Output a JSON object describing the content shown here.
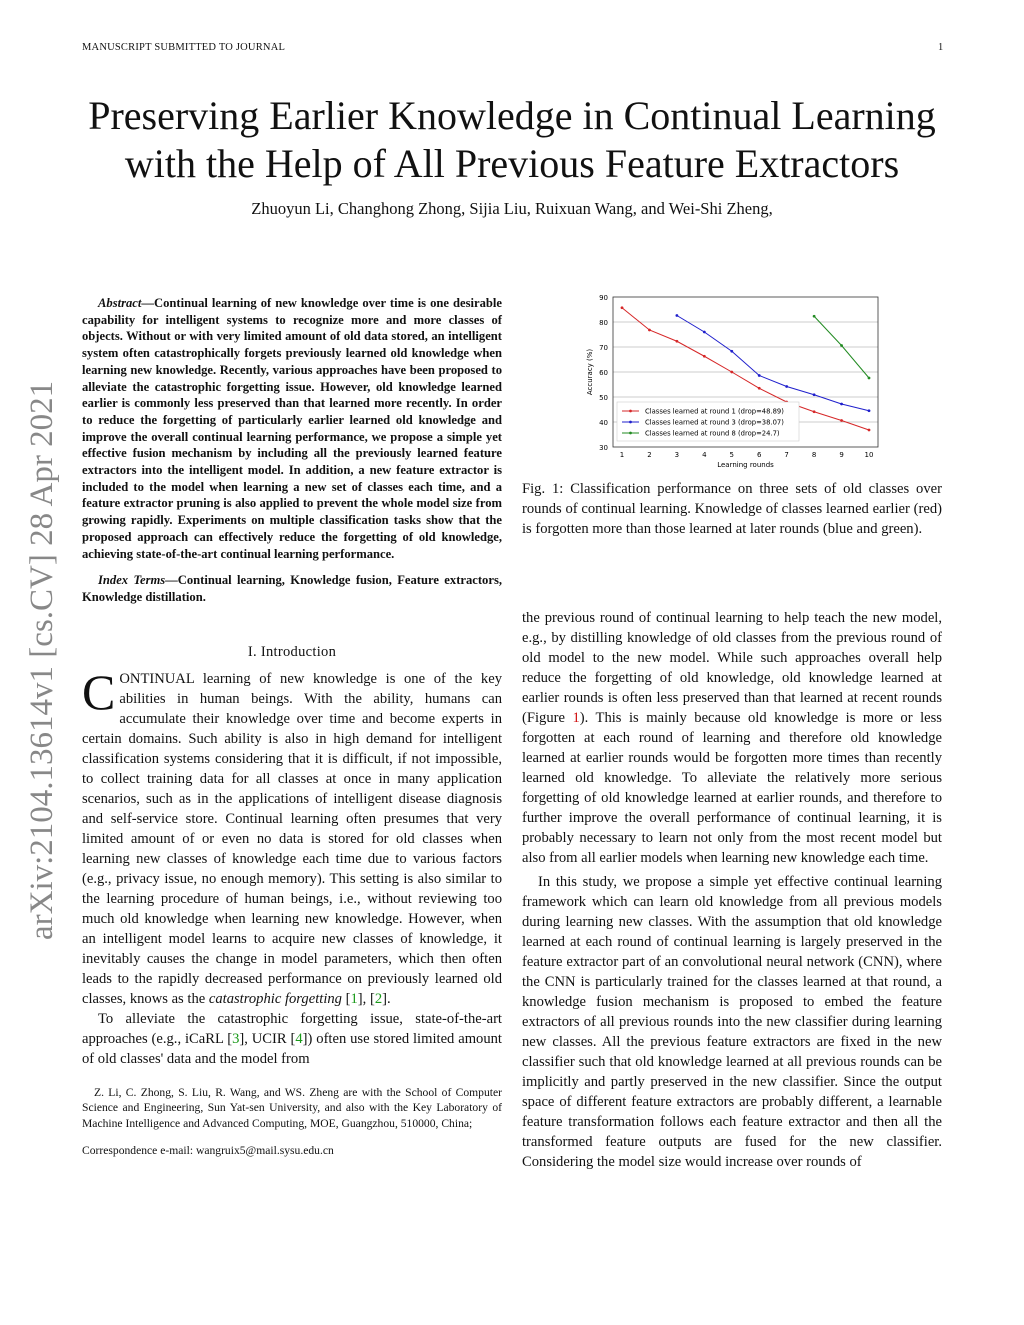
{
  "header": {
    "left": "MANUSCRIPT SUBMITTED TO JOURNAL",
    "page": "1"
  },
  "title_line1": "Preserving Earlier Knowledge in Continual Learning",
  "title_line2": "with the Help of All Previous Feature Extractors",
  "authors": "Zhuoyun Li, Changhong Zhong, Sijia Liu, Ruixuan Wang, and Wei-Shi Zheng,",
  "arxiv": "arXiv:2104.13614v1  [cs.CV]  28 Apr 2021",
  "abstract_label": "Abstract",
  "abstract": "—Continual learning of new knowledge over time is one desirable capability for intelligent systems to recognize more and more classes of objects. Without or with very limited amount of old data stored, an intelligent system often catastrophically forgets previously learned old knowledge when learning new knowledge. Recently, various approaches have been proposed to alleviate the catastrophic forgetting issue. However, old knowledge learned earlier is commonly less preserved than that learned more recently. In order to reduce the forgetting of particularly earlier learned old knowledge and improve the overall continual learning performance, we propose a simple yet effective fusion mechanism by including all the previously learned feature extractors into the intelligent model. In addition, a new feature extractor is included to the model when learning a new set of classes each time, and a feature extractor pruning is also applied to prevent the whole model size from growing rapidly. Experiments on multiple classification tasks show that the proposed approach can effectively reduce the forgetting of old knowledge, achieving state-of-the-art continual learning performance.",
  "index_label": "Index Terms",
  "index_terms": "—Continual learning, Knowledge fusion, Feature extractors, Knowledge distillation.",
  "section1": "I. Introduction",
  "intro_p1_drop": "C",
  "intro_p1": "ONTINUAL learning of new knowledge is one of the key abilities in human beings. With the ability, humans can accumulate their knowledge over time and become experts in certain domains. Such ability is also in high demand for intelligent classification systems considering that it is difficult, if not impossible, to collect training data for all classes at once in many application scenarios, such as in the applications of intelligent disease diagnosis and self-service store. Continual learning often presumes that very limited amount of or even no data is stored for old classes when learning new classes of knowledge each time due to various factors (e.g., privacy issue, no enough memory). This setting is also similar to the learning procedure of human beings, i.e., without reviewing too much old knowledge when learning new knowledge. However, when an intelligent model learns to acquire new classes of knowledge, it inevitably causes the change in model parameters, which then often leads to the rapidly decreased performance on previously learned old classes, knows as the",
  "intro_p1_em": "catastrophic forgetting",
  "cite1": "1",
  "cite2": "2",
  "cite3": "3",
  "cite4": "4",
  "fig_ref": "1",
  "intro_p2a": "To alleviate the catastrophic forgetting issue, state-of-the-art approaches (e.g., iCaRL [",
  "intro_p2b": "], UCIR [",
  "intro_p2c": "]) often use stored limited amount of old classes' data and the model from",
  "footnote1": "Z. Li, C. Zhong, S. Liu, R. Wang, and WS. Zheng are with the School of Computer Science and Engineering, Sun Yat-sen University, and also with the Key Laboratory of Machine Intelligence and Advanced Computing, MOE, Guangzhou, 510000, China;",
  "footnote2": "Correspondence e-mail: wangruix5@mail.sysu.edu.cn",
  "caption": "Fig. 1: Classification performance on three sets of old classes over rounds of continual learning. Knowledge of classes learned earlier (red) is forgotten more than those learned at later rounds (blue and green).",
  "right_p1a": "the previous round of continual learning to help teach the new model, e.g., by distilling knowledge of old classes from the previous round of old model to the new model. While such approaches overall help reduce the forgetting of old knowledge, old knowledge learned at earlier rounds is often less preserved than that learned at recent rounds (Figure ",
  "right_p1b": "). This is mainly because old knowledge is more or less forgotten at each round of learning and therefore old knowledge learned at earlier rounds would be forgotten more times than recently learned old knowledge. To alleviate the relatively more serious forgetting of old knowledge learned at earlier rounds, and therefore to further improve the overall performance of continual learning, it is probably necessary to learn not only from the most recent model but also from all earlier models when learning new knowledge each time.",
  "right_p2": "In this study, we propose a simple yet effective continual learning framework which can learn old knowledge from all previous models during learning new classes. With the assumption that old knowledge learned at each round of continual learning is largely preserved in the feature extractor part of an convolutional neural network (CNN), where the CNN is particularly trained for the classes learned at that round, a knowledge fusion mechanism is proposed to embed the feature extractors of all previous rounds into the new classifier during learning new classes. All the previous feature extractors are fixed in the new classifier such that old knowledge learned at all previous rounds can be implicitly and partly preserved in the new classifier. Since the output space of different feature extractors are probably different, a learnable feature transformation follows each feature extractor and then all the transformed feature outputs are fused for the new classifier. Considering the model size would increase over rounds of",
  "chart_data": {
    "type": "line",
    "xlabel": "Learning rounds",
    "ylabel": "Accuracy (%)",
    "xlim": [
      1,
      10
    ],
    "ylim": [
      30,
      90
    ],
    "xticks": [
      1,
      2,
      3,
      4,
      5,
      6,
      7,
      8,
      9,
      10
    ],
    "yticks": [
      30,
      40,
      50,
      60,
      70,
      80,
      90
    ],
    "grid": "horizontal",
    "legend": "bottom-left",
    "series": [
      {
        "name": "Classes learned at round 1 (drop=48.89)",
        "color": "#d62728",
        "x": [
          1,
          2,
          3,
          4,
          5,
          6,
          7,
          8,
          9,
          10
        ],
        "values": [
          85.7,
          76.8,
          72.3,
          66.3,
          60.0,
          53.5,
          48.0,
          44.1,
          40.6,
          36.8
        ]
      },
      {
        "name": "Classes learned at round 3 (drop=38.07)",
        "color": "#1f1fcc",
        "x": [
          3,
          4,
          5,
          6,
          7,
          8,
          9,
          10
        ],
        "values": [
          82.6,
          76.0,
          68.3,
          58.6,
          54.2,
          50.9,
          47.2,
          44.5
        ]
      },
      {
        "name": "Classes learned at round 8 (drop=24.7)",
        "color": "#228b22",
        "x": [
          8,
          9,
          10
        ],
        "values": [
          82.3,
          70.6,
          57.6
        ]
      }
    ]
  }
}
